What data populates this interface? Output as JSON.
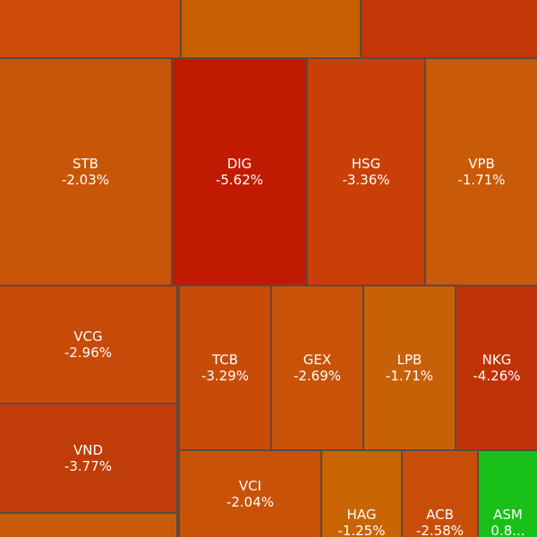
{
  "tiles": [
    {
      "symbol": "STB",
      "change": "-2.03%"
    },
    {
      "symbol": "DIG",
      "change": "-5.62%"
    },
    {
      "symbol": "HSG",
      "change": "-3.36%"
    },
    {
      "symbol": "VPB",
      "change": "-1.71%"
    },
    {
      "symbol": "VCG",
      "change": "-2.96%"
    },
    {
      "symbol": "VND",
      "change": "-3.77%"
    },
    {
      "symbol": "TCB",
      "change": "-3.29%"
    },
    {
      "symbol": "GEX",
      "change": "-2.69%"
    },
    {
      "symbol": "LPB",
      "change": "-1.71%"
    },
    {
      "symbol": "NKG",
      "change": "-4.26%"
    },
    {
      "symbol": "VCI",
      "change": "-2.04%"
    },
    {
      "symbol": "HAG",
      "change": "-1.25%"
    },
    {
      "symbol": "ACB",
      "change": "-2.58%"
    },
    {
      "symbol": "ASM",
      "change": "0.8..."
    }
  ]
}
